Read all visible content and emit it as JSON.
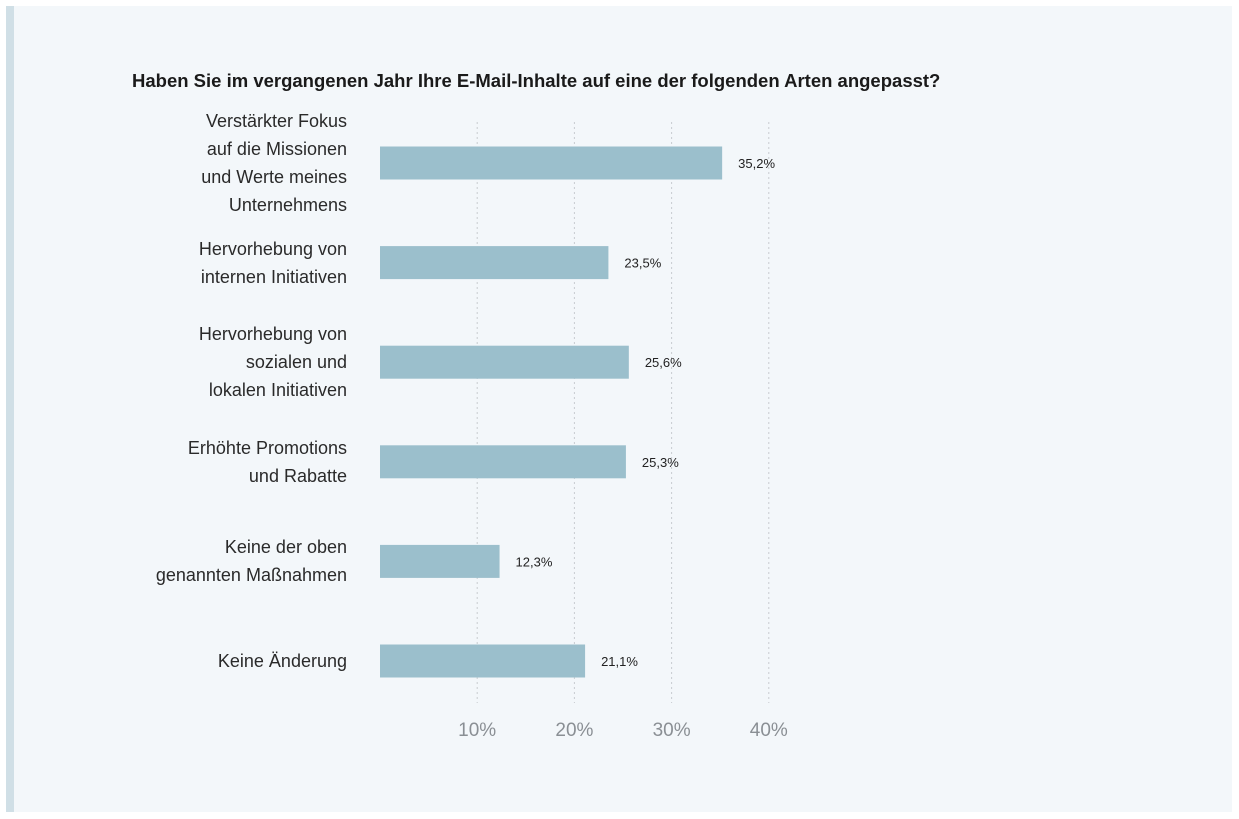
{
  "chart_data": {
    "type": "bar",
    "orientation": "horizontal",
    "title": "Haben Sie im vergangenen Jahr Ihre E-Mail-Inhalte auf eine der folgenden Arten angepasst?",
    "categories": [
      "Verstärkter Fokus\nauf die Missionen\nund Werte meines\nUnternehmens",
      "Hervorhebung von\ninternen Initiativen",
      "Hervorhebung von\nsozialen und\nlokalen Initiativen",
      "Erhöhte Promotions\nund Rabatte",
      "Keine der oben\ngenannten Maßnahmen",
      "Keine Änderung"
    ],
    "values": [
      35.2,
      23.5,
      25.6,
      25.3,
      12.3,
      21.1
    ],
    "value_labels": [
      "35,2%",
      "23,5%",
      "25,6%",
      "25,3%",
      "12,3%",
      "21,1%"
    ],
    "xlim": [
      0,
      40
    ],
    "xticks": [
      10,
      20,
      30,
      40
    ],
    "xtick_labels": [
      "10%",
      "20%",
      "30%",
      "40%"
    ],
    "grid": "vertical-dotted",
    "xlabel": "",
    "ylabel": "",
    "bar_color": "#9bbfcc",
    "grid_color": "#c8ccd0",
    "tick_color": "#8a8f94"
  }
}
